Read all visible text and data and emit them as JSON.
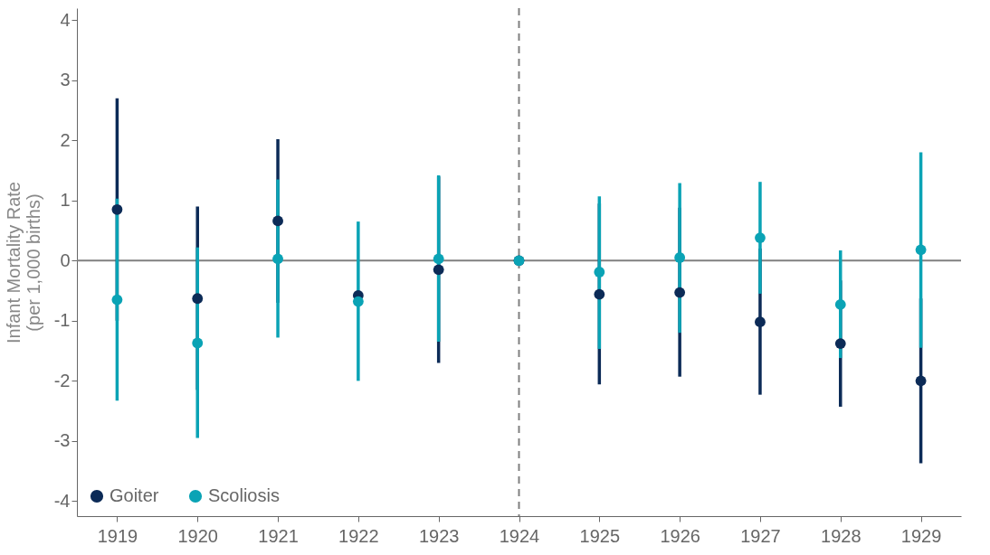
{
  "chart_data": {
    "type": "scatter",
    "ylabel": "Infant Mortality Rate\n(per 1,000 births)",
    "categories": [
      "1919",
      "1920",
      "1921",
      "1922",
      "1923",
      "1924",
      "1925",
      "1926",
      "1927",
      "1928",
      "1929"
    ],
    "series": [
      {
        "name": "Goiter",
        "color": "#0c2b57",
        "values": [
          0.85,
          -0.63,
          0.66,
          -0.58,
          -0.15,
          0,
          -0.56,
          -0.53,
          -1.02,
          -1.38,
          -2.0
        ],
        "errors": [
          [
            -1.0,
            2.7
          ],
          [
            -2.15,
            0.9
          ],
          [
            -0.7,
            2.02
          ],
          null,
          [
            -1.7,
            1.4
          ],
          null,
          [
            -2.06,
            0.95
          ],
          [
            -1.93,
            0.88
          ],
          [
            -2.23,
            0.2
          ],
          [
            -2.43,
            -0.33
          ],
          [
            -3.37,
            -0.63
          ]
        ]
      },
      {
        "name": "Scoliosis",
        "color": "#0aa3b5",
        "values": [
          -0.65,
          -1.37,
          0.03,
          -0.68,
          0.03,
          0,
          -0.19,
          0.05,
          0.38,
          -0.73,
          0.18
        ],
        "errors": [
          [
            -2.33,
            1.03
          ],
          [
            -2.95,
            0.22
          ],
          [
            -1.28,
            1.35
          ],
          [
            -2.0,
            0.65
          ],
          [
            -1.35,
            1.42
          ],
          null,
          [
            -1.47,
            1.07
          ],
          [
            -1.2,
            1.29
          ],
          [
            -0.55,
            1.31
          ],
          [
            -1.62,
            0.17
          ],
          [
            -1.45,
            1.8
          ]
        ]
      }
    ],
    "ylim": [
      -4.25,
      4.2
    ],
    "yticks": [
      -4,
      -3,
      -2,
      -1,
      0,
      1,
      2,
      3,
      4
    ],
    "ref_lines": [
      {
        "axis": "y",
        "value": 0,
        "color": "#808080",
        "line_style": "solid"
      },
      {
        "axis": "x",
        "value": "1924",
        "color": "#808080",
        "line_style": "dashed"
      }
    ],
    "grid": false,
    "legend": "bottom left",
    "marker": "circle"
  }
}
